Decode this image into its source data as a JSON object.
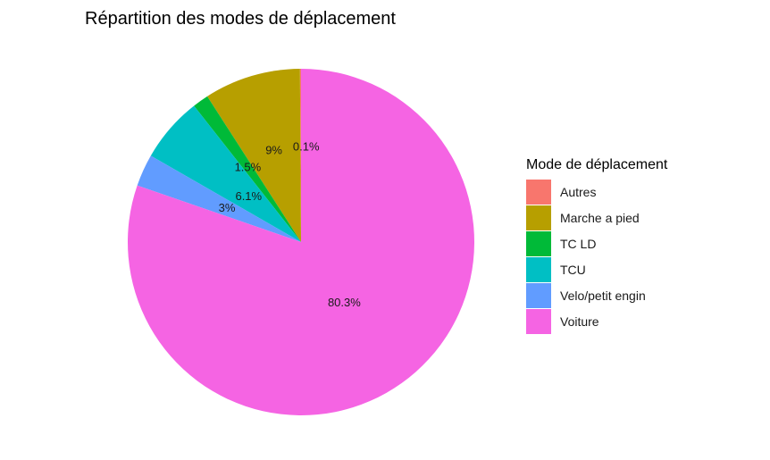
{
  "chart_data": {
    "type": "pie",
    "title": "Répartition des modes de déplacement",
    "legend_title": "Mode de déplacement",
    "legend_position": "right",
    "slices": [
      {
        "name": "Autres",
        "value": 0.1,
        "label": "0.1%",
        "color": "#F8766D"
      },
      {
        "name": "Marche a pied",
        "value": 9.0,
        "label": "9%",
        "color": "#B79F00"
      },
      {
        "name": "TC LD",
        "value": 1.5,
        "label": "1.5%",
        "color": "#00BA38"
      },
      {
        "name": "TCU",
        "value": 6.1,
        "label": "6.1%",
        "color": "#00BFC4"
      },
      {
        "name": "Velo/petit engin",
        "value": 3.0,
        "label": "3%",
        "color": "#619CFF"
      },
      {
        "name": "Voiture",
        "value": 80.3,
        "label": "80.3%",
        "color": "#F564E3"
      }
    ]
  }
}
